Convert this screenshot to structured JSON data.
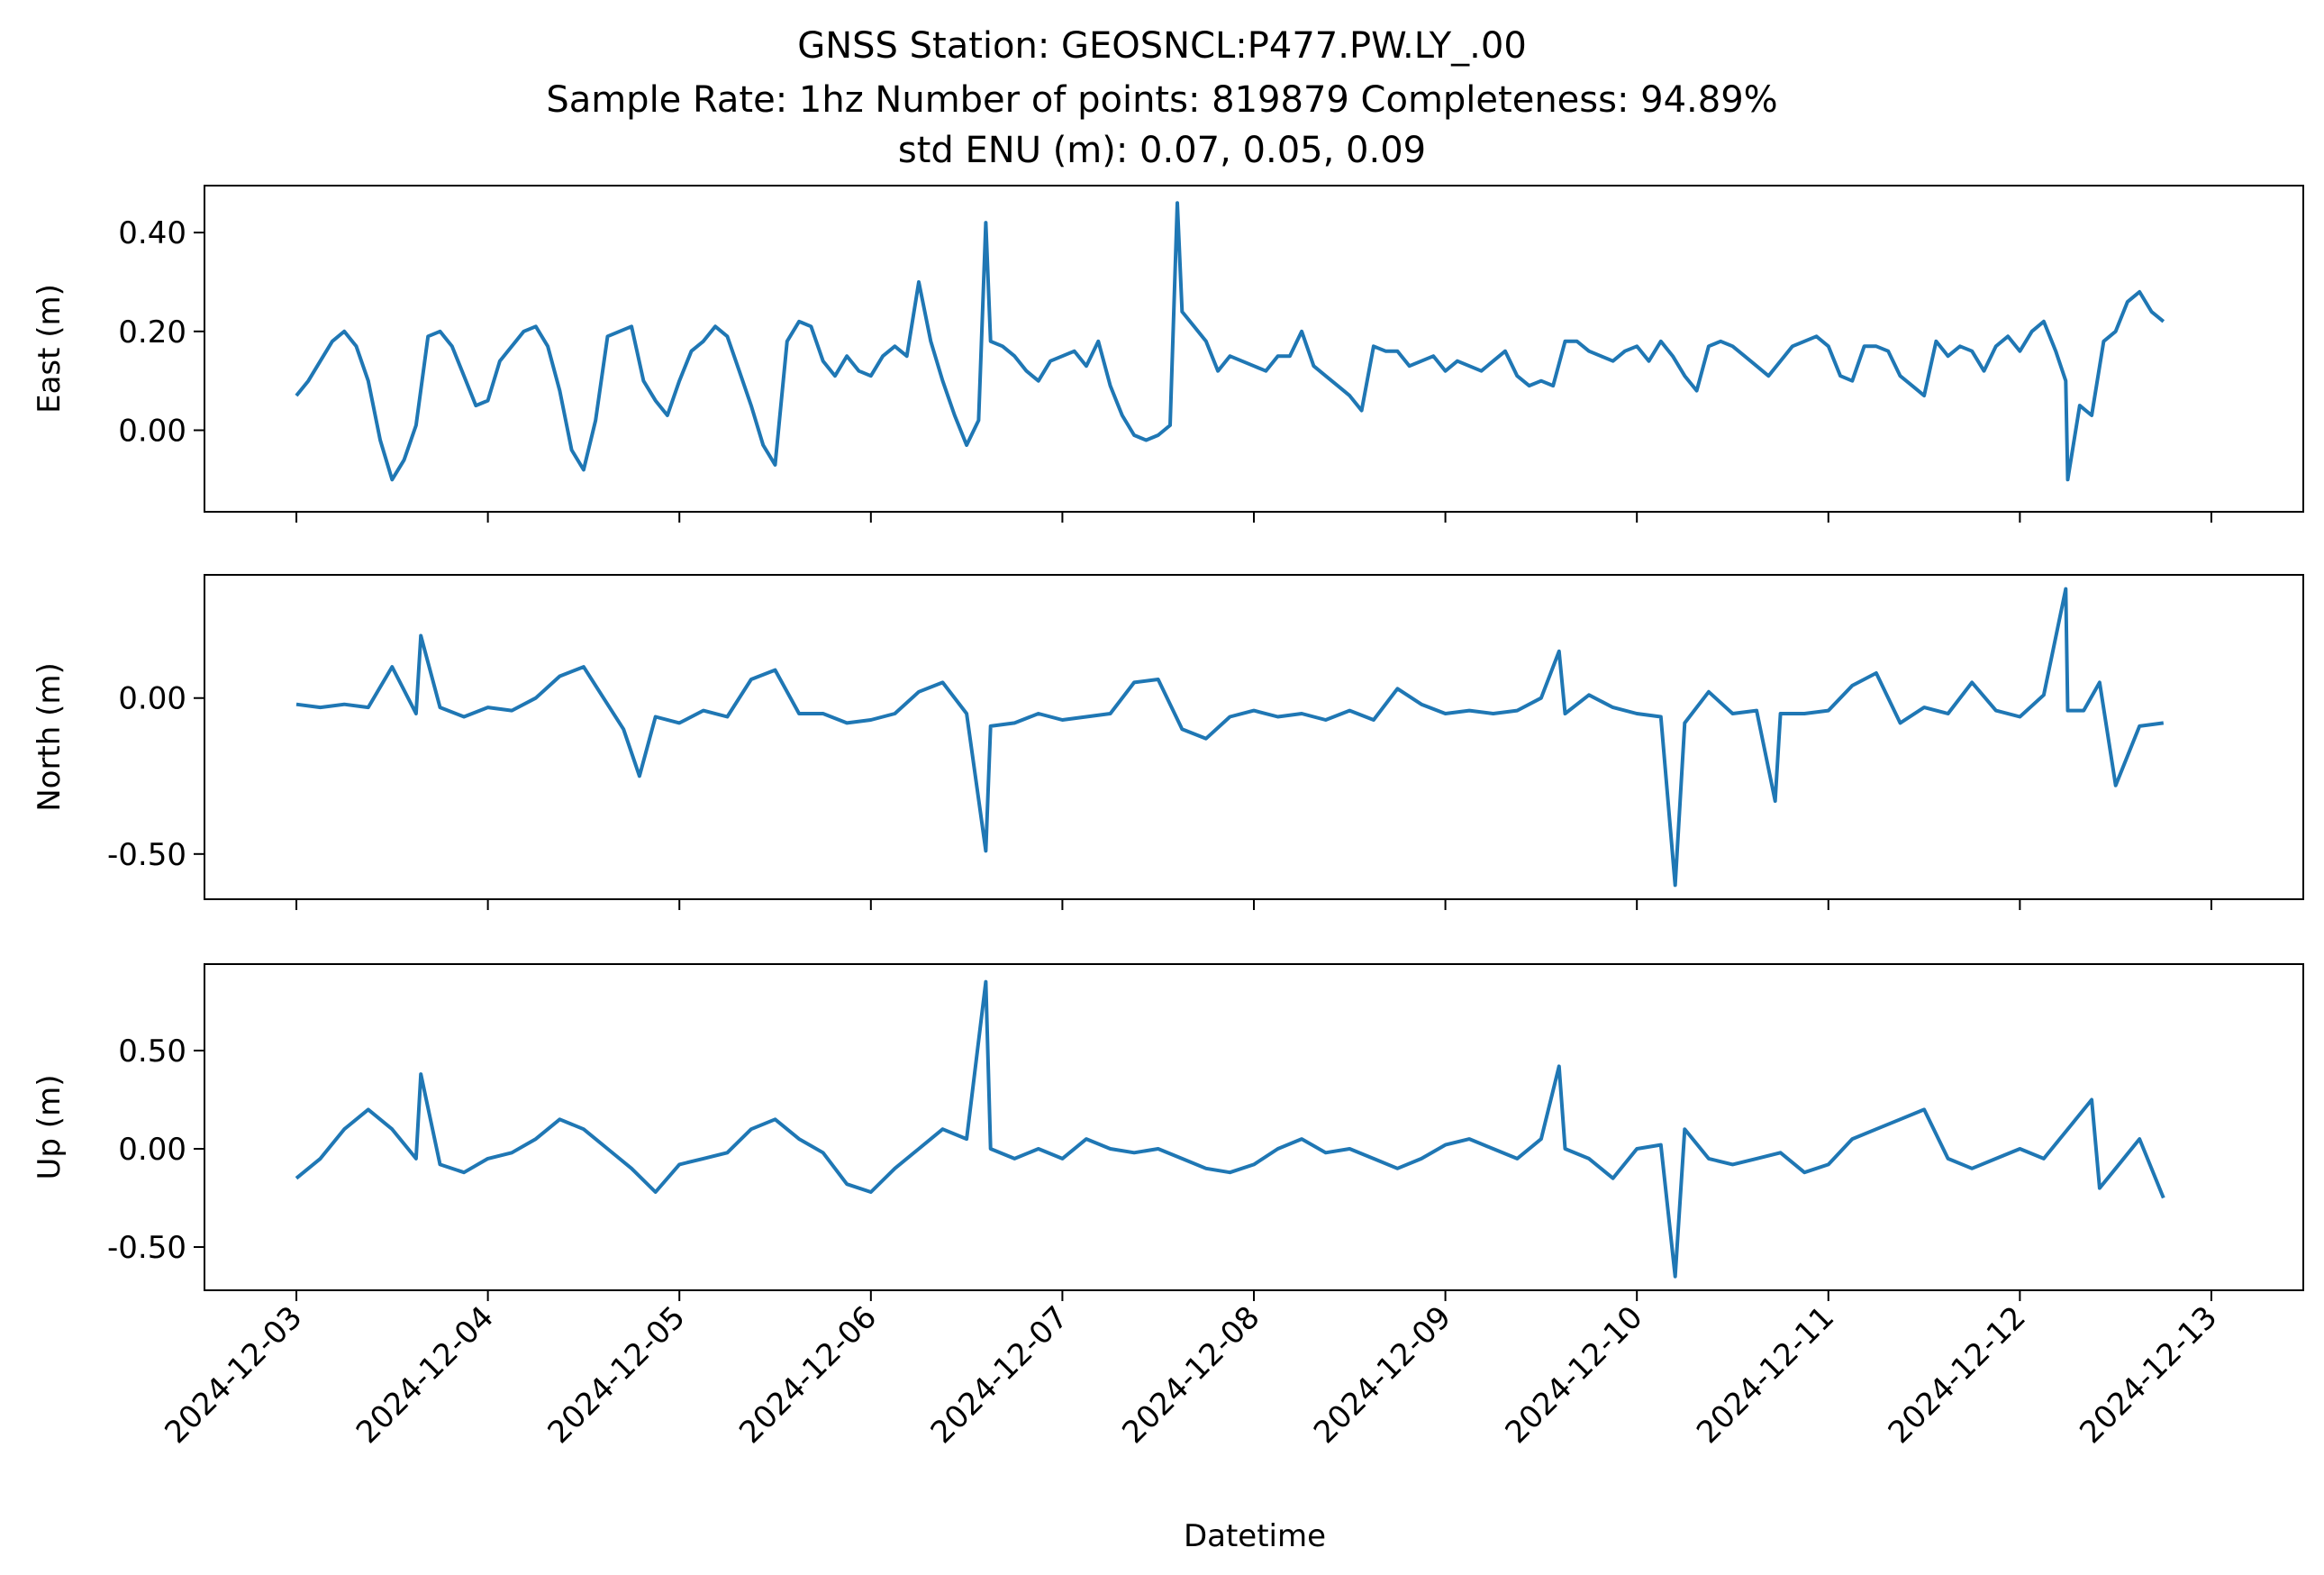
{
  "title": {
    "line1": "GNSS Station: GEOSNCL:P477.PW.LY_.00",
    "line2": "Sample Rate: 1hz   Number of points: 819879    Completeness:  94.89%",
    "line3": "std ENU (m):  0.07, 0.05, 0.09"
  },
  "xlabel": "Datetime",
  "colors": {
    "series": "#1f77b4",
    "axes": "#000000",
    "background": "#ffffff"
  },
  "chart_data": [
    {
      "type": "line",
      "ylabel": "East (m)",
      "ylim": [
        -0.165,
        0.495
      ],
      "yticks": [
        0.0,
        0.2,
        0.4
      ],
      "ytick_labels": [
        "0.00",
        "0.20",
        "0.40"
      ],
      "x_tick_labels_visible": false,
      "series": [
        {
          "x": [
            "2024-12-03T00:00",
            "2024-12-03T01:30",
            "2024-12-03T03:00",
            "2024-12-03T04:30",
            "2024-12-03T06:00",
            "2024-12-03T07:30",
            "2024-12-03T09:00",
            "2024-12-03T10:30",
            "2024-12-03T12:00",
            "2024-12-03T13:30",
            "2024-12-03T15:00",
            "2024-12-03T16:30",
            "2024-12-03T18:00",
            "2024-12-03T19:30",
            "2024-12-03T21:00",
            "2024-12-03T22:30",
            "2024-12-04T00:00",
            "2024-12-04T01:30",
            "2024-12-04T03:00",
            "2024-12-04T04:30",
            "2024-12-04T06:00",
            "2024-12-04T07:30",
            "2024-12-04T09:00",
            "2024-12-04T10:30",
            "2024-12-04T12:00",
            "2024-12-04T13:30",
            "2024-12-04T15:00",
            "2024-12-04T16:30",
            "2024-12-04T18:00",
            "2024-12-04T19:30",
            "2024-12-04T21:00",
            "2024-12-04T22:30",
            "2024-12-05T00:00",
            "2024-12-05T01:30",
            "2024-12-05T03:00",
            "2024-12-05T04:30",
            "2024-12-05T06:00",
            "2024-12-05T07:30",
            "2024-12-05T09:00",
            "2024-12-05T10:30",
            "2024-12-05T12:00",
            "2024-12-05T13:30",
            "2024-12-05T15:00",
            "2024-12-05T16:30",
            "2024-12-05T18:00",
            "2024-12-05T19:30",
            "2024-12-05T21:00",
            "2024-12-05T22:30",
            "2024-12-06T00:00",
            "2024-12-06T01:30",
            "2024-12-06T03:00",
            "2024-12-06T04:30",
            "2024-12-06T06:00",
            "2024-12-06T07:30",
            "2024-12-06T09:00",
            "2024-12-06T10:30",
            "2024-12-06T12:00",
            "2024-12-06T13:30",
            "2024-12-06T14:24",
            "2024-12-06T15:00",
            "2024-12-06T16:30",
            "2024-12-06T18:00",
            "2024-12-06T19:30",
            "2024-12-06T21:00",
            "2024-12-06T22:30",
            "2024-12-07T00:00",
            "2024-12-07T01:30",
            "2024-12-07T03:00",
            "2024-12-07T04:30",
            "2024-12-07T06:00",
            "2024-12-07T07:30",
            "2024-12-07T09:00",
            "2024-12-07T10:30",
            "2024-12-07T12:00",
            "2024-12-07T13:30",
            "2024-12-07T14:24",
            "2024-12-07T15:00",
            "2024-12-07T16:30",
            "2024-12-07T18:00",
            "2024-12-07T19:30",
            "2024-12-07T21:00",
            "2024-12-07T22:30",
            "2024-12-08T00:00",
            "2024-12-08T01:30",
            "2024-12-08T03:00",
            "2024-12-08T04:30",
            "2024-12-08T06:00",
            "2024-12-08T07:30",
            "2024-12-08T09:00",
            "2024-12-08T10:30",
            "2024-12-08T12:00",
            "2024-12-08T13:30",
            "2024-12-08T15:00",
            "2024-12-08T16:30",
            "2024-12-08T18:00",
            "2024-12-08T19:30",
            "2024-12-08T21:00",
            "2024-12-08T22:30",
            "2024-12-09T00:00",
            "2024-12-09T01:30",
            "2024-12-09T03:00",
            "2024-12-09T04:30",
            "2024-12-09T06:00",
            "2024-12-09T07:30",
            "2024-12-09T09:00",
            "2024-12-09T10:30",
            "2024-12-09T12:00",
            "2024-12-09T13:30",
            "2024-12-09T15:00",
            "2024-12-09T16:30",
            "2024-12-09T18:00",
            "2024-12-09T19:30",
            "2024-12-09T21:00",
            "2024-12-09T22:30",
            "2024-12-10T00:00",
            "2024-12-10T01:30",
            "2024-12-10T03:00",
            "2024-12-10T04:30",
            "2024-12-10T06:00",
            "2024-12-10T07:30",
            "2024-12-10T09:00",
            "2024-12-10T10:30",
            "2024-12-10T12:00",
            "2024-12-10T13:30",
            "2024-12-10T15:00",
            "2024-12-10T16:30",
            "2024-12-10T18:00",
            "2024-12-10T19:30",
            "2024-12-10T21:00",
            "2024-12-10T22:30",
            "2024-12-11T00:00",
            "2024-12-11T01:30",
            "2024-12-11T03:00",
            "2024-12-11T04:30",
            "2024-12-11T06:00",
            "2024-12-11T07:30",
            "2024-12-11T09:00",
            "2024-12-11T10:30",
            "2024-12-11T12:00",
            "2024-12-11T13:30",
            "2024-12-11T15:00",
            "2024-12-11T16:30",
            "2024-12-11T18:00",
            "2024-12-11T19:30",
            "2024-12-11T21:00",
            "2024-12-11T22:30",
            "2024-12-12T00:00",
            "2024-12-12T01:30",
            "2024-12-12T03:00",
            "2024-12-12T04:30",
            "2024-12-12T05:45",
            "2024-12-12T06:00",
            "2024-12-12T07:30",
            "2024-12-12T09:00",
            "2024-12-12T10:30",
            "2024-12-12T12:00",
            "2024-12-12T13:30",
            "2024-12-12T15:00",
            "2024-12-12T16:30",
            "2024-12-12T18:00"
          ],
          "y": [
            0.07,
            0.1,
            0.14,
            0.18,
            0.2,
            0.17,
            0.1,
            -0.02,
            -0.1,
            -0.06,
            0.01,
            0.19,
            0.2,
            0.17,
            0.11,
            0.05,
            0.06,
            0.14,
            0.17,
            0.2,
            0.21,
            0.17,
            0.08,
            -0.04,
            -0.08,
            0.02,
            0.19,
            0.2,
            0.21,
            0.1,
            0.06,
            0.03,
            0.1,
            0.16,
            0.18,
            0.21,
            0.19,
            0.12,
            0.05,
            -0.03,
            -0.07,
            0.18,
            0.22,
            0.21,
            0.14,
            0.11,
            0.15,
            0.12,
            0.11,
            0.15,
            0.17,
            0.15,
            0.3,
            0.18,
            0.1,
            0.03,
            -0.03,
            0.02,
            0.42,
            0.18,
            0.17,
            0.15,
            0.12,
            0.1,
            0.14,
            0.15,
            0.16,
            0.13,
            0.18,
            0.09,
            0.03,
            -0.01,
            -0.02,
            -0.01,
            0.01,
            0.46,
            0.24,
            0.21,
            0.18,
            0.12,
            0.15,
            0.14,
            0.13,
            0.12,
            0.15,
            0.15,
            0.2,
            0.13,
            0.11,
            0.09,
            0.07,
            0.04,
            0.17,
            0.16,
            0.16,
            0.13,
            0.14,
            0.15,
            0.12,
            0.14,
            0.13,
            0.12,
            0.14,
            0.16,
            0.11,
            0.09,
            0.1,
            0.09,
            0.18,
            0.18,
            0.16,
            0.15,
            0.14,
            0.16,
            0.17,
            0.14,
            0.18,
            0.15,
            0.11,
            0.08,
            0.17,
            0.18,
            0.17,
            0.15,
            0.13,
            0.11,
            0.14,
            0.17,
            0.18,
            0.19,
            0.17,
            0.11,
            0.1,
            0.17,
            0.17,
            0.16,
            0.11,
            0.09,
            0.07,
            0.18,
            0.15,
            0.17,
            0.16,
            0.12,
            0.17,
            0.19,
            0.16,
            0.2,
            0.22,
            0.16,
            0.1,
            -0.1,
            0.05,
            0.03,
            0.18,
            0.2,
            0.26,
            0.28,
            0.24,
            0.22
          ]
        }
      ]
    },
    {
      "type": "line",
      "ylabel": "North (m)",
      "ylim": [
        -0.645,
        0.395
      ],
      "yticks": [
        0.0,
        -0.5
      ],
      "ytick_labels": [
        "0.00",
        "-0.50"
      ],
      "x_tick_labels_visible": false,
      "series": [
        {
          "x": [
            "2024-12-03T00:00",
            "2024-12-03T03:00",
            "2024-12-03T06:00",
            "2024-12-03T09:00",
            "2024-12-03T12:00",
            "2024-12-03T15:00",
            "2024-12-03T15:36",
            "2024-12-03T18:00",
            "2024-12-03T21:00",
            "2024-12-04T00:00",
            "2024-12-04T03:00",
            "2024-12-04T06:00",
            "2024-12-04T09:00",
            "2024-12-04T12:00",
            "2024-12-04T15:00",
            "2024-12-04T17:00",
            "2024-12-04T19:00",
            "2024-12-04T21:00",
            "2024-12-05T00:00",
            "2024-12-05T03:00",
            "2024-12-05T06:00",
            "2024-12-05T09:00",
            "2024-12-05T12:00",
            "2024-12-05T15:00",
            "2024-12-05T18:00",
            "2024-12-05T21:00",
            "2024-12-06T00:00",
            "2024-12-06T03:00",
            "2024-12-06T06:00",
            "2024-12-06T09:00",
            "2024-12-06T12:00",
            "2024-12-06T14:24",
            "2024-12-06T15:00",
            "2024-12-06T18:00",
            "2024-12-06T21:00",
            "2024-12-07T00:00",
            "2024-12-07T03:00",
            "2024-12-07T06:00",
            "2024-12-07T09:00",
            "2024-12-07T12:00",
            "2024-12-07T15:00",
            "2024-12-07T18:00",
            "2024-12-07T21:00",
            "2024-12-08T00:00",
            "2024-12-08T03:00",
            "2024-12-08T06:00",
            "2024-12-08T09:00",
            "2024-12-08T12:00",
            "2024-12-08T15:00",
            "2024-12-08T18:00",
            "2024-12-08T21:00",
            "2024-12-09T00:00",
            "2024-12-09T03:00",
            "2024-12-09T06:00",
            "2024-12-09T09:00",
            "2024-12-09T12:00",
            "2024-12-09T14:15",
            "2024-12-09T15:00",
            "2024-12-09T18:00",
            "2024-12-09T21:00",
            "2024-12-10T00:00",
            "2024-12-10T03:00",
            "2024-12-10T04:48",
            "2024-12-10T06:00",
            "2024-12-10T09:00",
            "2024-12-10T12:00",
            "2024-12-10T15:00",
            "2024-12-10T17:20",
            "2024-12-10T18:00",
            "2024-12-10T21:00",
            "2024-12-11T00:00",
            "2024-12-11T03:00",
            "2024-12-11T06:00",
            "2024-12-11T09:00",
            "2024-12-11T12:00",
            "2024-12-11T15:00",
            "2024-12-11T18:00",
            "2024-12-11T21:00",
            "2024-12-12T00:00",
            "2024-12-12T03:00",
            "2024-12-12T05:45",
            "2024-12-12T06:00",
            "2024-12-12T08:00",
            "2024-12-12T10:00",
            "2024-12-12T12:00",
            "2024-12-12T15:00",
            "2024-12-12T18:00"
          ],
          "y": [
            -0.02,
            -0.03,
            -0.02,
            -0.03,
            0.1,
            -0.05,
            0.2,
            -0.03,
            -0.06,
            -0.03,
            -0.04,
            0.0,
            0.07,
            0.1,
            -0.02,
            -0.1,
            -0.25,
            -0.06,
            -0.08,
            -0.04,
            -0.06,
            0.06,
            0.09,
            -0.05,
            -0.05,
            -0.08,
            -0.07,
            -0.05,
            0.02,
            0.05,
            -0.05,
            -0.49,
            -0.09,
            -0.08,
            -0.05,
            -0.07,
            -0.06,
            -0.05,
            0.05,
            0.06,
            -0.1,
            -0.13,
            -0.06,
            -0.04,
            -0.06,
            -0.05,
            -0.07,
            -0.04,
            -0.07,
            0.03,
            -0.02,
            -0.05,
            -0.04,
            -0.05,
            -0.04,
            0.0,
            0.15,
            -0.05,
            0.01,
            -0.03,
            -0.05,
            -0.06,
            -0.6,
            -0.08,
            0.02,
            -0.05,
            -0.04,
            -0.33,
            -0.05,
            -0.05,
            -0.04,
            0.04,
            0.08,
            -0.08,
            -0.03,
            -0.05,
            0.05,
            -0.04,
            -0.06,
            0.01,
            0.35,
            -0.04,
            -0.04,
            0.05,
            -0.28,
            -0.09,
            -0.08
          ]
        }
      ]
    },
    {
      "type": "line",
      "ylabel": "Up (m)",
      "ylim": [
        -0.72,
        0.94
      ],
      "yticks": [
        0.5,
        0.0,
        -0.5
      ],
      "ytick_labels": [
        "0.50",
        "0.00",
        "-0.50"
      ],
      "x_tick_labels_visible": true,
      "xticks": [
        "2024-12-03",
        "2024-12-04",
        "2024-12-05",
        "2024-12-06",
        "2024-12-07",
        "2024-12-08",
        "2024-12-09",
        "2024-12-10",
        "2024-12-11",
        "2024-12-12",
        "2024-12-13"
      ],
      "series": [
        {
          "x": [
            "2024-12-03T00:00",
            "2024-12-03T03:00",
            "2024-12-03T06:00",
            "2024-12-03T09:00",
            "2024-12-03T12:00",
            "2024-12-03T15:00",
            "2024-12-03T15:36",
            "2024-12-03T18:00",
            "2024-12-03T21:00",
            "2024-12-04T00:00",
            "2024-12-04T03:00",
            "2024-12-04T06:00",
            "2024-12-04T09:00",
            "2024-12-04T12:00",
            "2024-12-04T15:00",
            "2024-12-04T18:00",
            "2024-12-04T21:00",
            "2024-12-05T00:00",
            "2024-12-05T03:00",
            "2024-12-05T06:00",
            "2024-12-05T09:00",
            "2024-12-05T12:00",
            "2024-12-05T15:00",
            "2024-12-05T18:00",
            "2024-12-05T21:00",
            "2024-12-06T00:00",
            "2024-12-06T03:00",
            "2024-12-06T06:00",
            "2024-12-06T09:00",
            "2024-12-06T12:00",
            "2024-12-06T14:24",
            "2024-12-06T15:00",
            "2024-12-06T18:00",
            "2024-12-06T21:00",
            "2024-12-07T00:00",
            "2024-12-07T03:00",
            "2024-12-07T06:00",
            "2024-12-07T09:00",
            "2024-12-07T12:00",
            "2024-12-07T15:00",
            "2024-12-07T18:00",
            "2024-12-07T21:00",
            "2024-12-08T00:00",
            "2024-12-08T03:00",
            "2024-12-08T06:00",
            "2024-12-08T09:00",
            "2024-12-08T12:00",
            "2024-12-08T15:00",
            "2024-12-08T18:00",
            "2024-12-08T21:00",
            "2024-12-09T00:00",
            "2024-12-09T03:00",
            "2024-12-09T06:00",
            "2024-12-09T09:00",
            "2024-12-09T12:00",
            "2024-12-09T14:15",
            "2024-12-09T15:00",
            "2024-12-09T18:00",
            "2024-12-09T21:00",
            "2024-12-10T00:00",
            "2024-12-10T03:00",
            "2024-12-10T04:48",
            "2024-12-10T06:00",
            "2024-12-10T09:00",
            "2024-12-10T12:00",
            "2024-12-10T15:00",
            "2024-12-10T18:00",
            "2024-12-10T21:00",
            "2024-12-11T00:00",
            "2024-12-11T03:00",
            "2024-12-11T06:00",
            "2024-12-11T09:00",
            "2024-12-11T12:00",
            "2024-12-11T15:00",
            "2024-12-11T18:00",
            "2024-12-11T21:00",
            "2024-12-12T00:00",
            "2024-12-12T03:00",
            "2024-12-12T06:00",
            "2024-12-12T09:00",
            "2024-12-12T10:00",
            "2024-12-12T12:00",
            "2024-12-12T15:00",
            "2024-12-12T18:00"
          ],
          "y": [
            -0.15,
            -0.05,
            0.1,
            0.2,
            0.1,
            -0.05,
            0.38,
            -0.08,
            -0.12,
            -0.05,
            -0.02,
            0.05,
            0.15,
            0.1,
            0.0,
            -0.1,
            -0.22,
            -0.08,
            -0.05,
            -0.02,
            0.1,
            0.15,
            0.05,
            -0.02,
            -0.18,
            -0.22,
            -0.1,
            0.0,
            0.1,
            0.05,
            0.85,
            0.0,
            -0.05,
            0.0,
            -0.05,
            0.05,
            0.0,
            -0.02,
            0.0,
            -0.05,
            -0.1,
            -0.12,
            -0.08,
            0.0,
            0.05,
            -0.02,
            0.0,
            -0.05,
            -0.1,
            -0.05,
            0.02,
            0.05,
            0.0,
            -0.05,
            0.05,
            0.42,
            0.0,
            -0.05,
            -0.15,
            0.0,
            0.02,
            -0.65,
            0.1,
            -0.05,
            -0.08,
            -0.05,
            -0.02,
            -0.12,
            -0.08,
            0.05,
            0.1,
            0.15,
            0.2,
            -0.05,
            -0.1,
            -0.05,
            0.0,
            -0.05,
            0.1,
            0.25,
            -0.2,
            -0.1,
            0.05,
            -0.25
          ]
        }
      ]
    }
  ]
}
